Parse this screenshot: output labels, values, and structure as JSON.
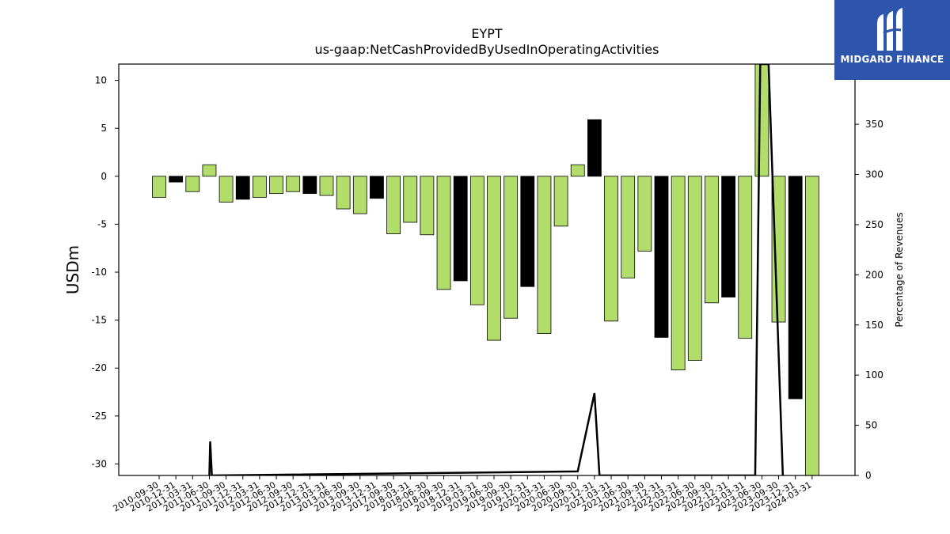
{
  "chart_data": {
    "type": "bar",
    "title": "EYPT",
    "subtitle": "us-gaap:NetCashProvidedByUsedInOperatingActivities",
    "ylabel": "USDm",
    "y2label": "Percentage of Revenues",
    "ylim": [
      -31.2,
      11.7
    ],
    "y2lim": [
      0,
      410
    ],
    "yticks": [
      10,
      5,
      0,
      -5,
      -10,
      -15,
      -20,
      -25,
      -30
    ],
    "y2ticks": [
      0,
      50,
      100,
      150,
      200,
      250,
      300,
      350
    ],
    "categories": [
      "2010-09-30",
      "2010-12-31",
      "2011-03-31",
      "2011-06-30",
      "2011-09-30",
      "2011-12-31",
      "2012-03-31",
      "2012-06-30",
      "2012-09-30",
      "2012-12-31",
      "2013-03-31",
      "2013-06-30",
      "2013-09-30",
      "2013-12-31",
      "2017-09-30",
      "2018-03-31",
      "2018-06-30",
      "2018-09-30",
      "2018-12-31",
      "2019-03-31",
      "2019-06-30",
      "2019-09-30",
      "2019-12-31",
      "2020-03-31",
      "2020-06-30",
      "2020-09-30",
      "2020-12-31",
      "2021-03-31",
      "2021-06-30",
      "2021-09-30",
      "2021-12-31",
      "2022-03-31",
      "2022-06-30",
      "2022-09-30",
      "2022-12-31",
      "2023-03-31",
      "2023-06-30",
      "2023-09-30",
      "2023-12-31",
      "2024-03-31"
    ],
    "values": [
      -2.2,
      -0.6,
      -1.6,
      1.2,
      -2.7,
      -2.4,
      -2.2,
      -1.8,
      -1.6,
      -1.8,
      -2.0,
      -3.4,
      -3.9,
      -2.3,
      -6.0,
      -4.8,
      -6.1,
      -11.8,
      -10.9,
      -13.4,
      -17.1,
      -14.8,
      -11.5,
      -16.4,
      -5.2,
      1.2,
      5.9,
      -15.1,
      -10.6,
      -7.8,
      -16.8,
      -20.2,
      -19.2,
      -13.2,
      -12.6,
      -16.9,
      12.0,
      -15.2,
      -23.2,
      -33.0
    ],
    "colors": [
      "g",
      "k",
      "g",
      "g",
      "g",
      "k",
      "g",
      "g",
      "g",
      "k",
      "g",
      "g",
      "g",
      "k",
      "g",
      "g",
      "g",
      "g",
      "k",
      "g",
      "g",
      "g",
      "k",
      "g",
      "g",
      "g",
      "k",
      "g",
      "g",
      "g",
      "k",
      "g",
      "g",
      "g",
      "k",
      "g",
      "g",
      "g",
      "k",
      "g"
    ],
    "green": "#b2dd6b",
    "black": "#000000",
    "line": {
      "name": "",
      "points": [
        [
          3,
          0
        ],
        [
          3.05,
          34
        ],
        [
          3.15,
          0
        ],
        [
          25,
          4
        ],
        [
          26,
          82
        ],
        [
          26.3,
          0
        ],
        [
          35.6,
          0
        ],
        [
          35.9,
          410
        ],
        [
          36.4,
          410
        ],
        [
          37.25,
          0
        ]
      ]
    }
  },
  "logo": {
    "text": "MIDGARD FINANCE",
    "color": "#2d55ac"
  }
}
